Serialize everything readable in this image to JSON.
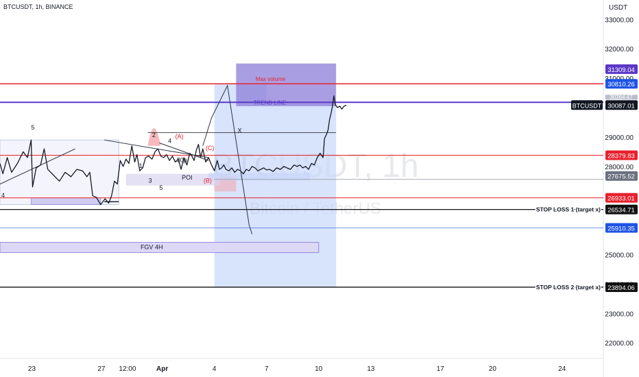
{
  "header": {
    "symbol_line": "BTCUSDT, 1h, BINANCE"
  },
  "watermark": {
    "big": "BTCUSDT, 1h",
    "sub": "Bitcoin / TetherUS"
  },
  "chart_data": {
    "type": "line",
    "title": "BTCUSDT, 1h, BINANCE",
    "ylabel": "USDT",
    "ylim": [
      21400,
      33600
    ],
    "y_ticks": [
      22000,
      23000,
      24000,
      25000,
      26000,
      27000,
      28000,
      29000,
      30000,
      31000,
      32000,
      33000
    ],
    "y_tick_labels": [
      "22000.00",
      "23000.00",
      "24000.00",
      "25000.00",
      "26000.00",
      "27000.00",
      "28000.00",
      "29000.00",
      "30000.00",
      "31000.00",
      "32000.00",
      "33000.00"
    ],
    "x_ticks": [
      {
        "label": "23",
        "x": 0
      },
      {
        "label": "27",
        "x": 96
      },
      {
        "label": "12:00",
        "x": 132
      },
      {
        "label": "Apr",
        "x": 180
      },
      {
        "label": "4",
        "x": 252
      },
      {
        "label": "7",
        "x": 324
      },
      {
        "label": "10",
        "x": 396
      },
      {
        "label": "13",
        "x": 468
      },
      {
        "label": "17",
        "x": 564
      },
      {
        "label": "20",
        "x": 636
      },
      {
        "label": "24",
        "x": 732
      }
    ],
    "x_range": [
      -44,
      789
    ],
    "price_path": [
      [
        -44,
        28100
      ],
      [
        -40,
        27750
      ],
      [
        -34,
        28300
      ],
      [
        -28,
        27800
      ],
      [
        -20,
        28100
      ],
      [
        -12,
        28500
      ],
      [
        -6,
        28300
      ],
      [
        -1,
        28900
      ],
      [
        1,
        27300
      ],
      [
        6,
        27950
      ],
      [
        12,
        28050
      ],
      [
        17,
        28600
      ],
      [
        22,
        27900
      ],
      [
        30,
        27700
      ],
      [
        38,
        27500
      ],
      [
        46,
        27800
      ],
      [
        54,
        27650
      ],
      [
        62,
        27900
      ],
      [
        70,
        27850
      ],
      [
        76,
        27650
      ],
      [
        80,
        27800
      ],
      [
        84,
        27000
      ],
      [
        89,
        26950
      ],
      [
        95,
        26700
      ],
      [
        101,
        26900
      ],
      [
        106,
        26750
      ],
      [
        110,
        27000
      ],
      [
        114,
        27500
      ],
      [
        118,
        27400
      ],
      [
        122,
        28200
      ],
      [
        126,
        28000
      ],
      [
        130,
        28250
      ],
      [
        134,
        28100
      ],
      [
        138,
        28700
      ],
      [
        142,
        28150
      ],
      [
        145,
        28400
      ],
      [
        149,
        27850
      ],
      [
        153,
        27950
      ],
      [
        157,
        28300
      ],
      [
        161,
        28350
      ],
      [
        166,
        28250
      ],
      [
        170,
        28500
      ],
      [
        174,
        28600
      ],
      [
        178,
        28350
      ],
      [
        182,
        28300
      ],
      [
        186,
        28400
      ],
      [
        190,
        28200
      ],
      [
        194,
        28350
      ],
      [
        198,
        28150
      ],
      [
        202,
        28250
      ],
      [
        206,
        27900
      ],
      [
        210,
        28300
      ],
      [
        214,
        28050
      ],
      [
        218,
        28450
      ],
      [
        221,
        28350
      ],
      [
        224,
        28200
      ],
      [
        227,
        28550
      ],
      [
        230,
        28750
      ],
      [
        233,
        28300
      ],
      [
        236,
        28600
      ],
      [
        240,
        28150
      ],
      [
        244,
        28300
      ],
      [
        248,
        28050
      ],
      [
        252,
        27850
      ],
      [
        256,
        28200
      ],
      [
        259,
        27900
      ],
      [
        262,
        27950
      ],
      [
        265,
        28050
      ],
      [
        268,
        27900
      ],
      [
        272,
        27850
      ],
      [
        276,
        27950
      ],
      [
        280,
        27800
      ],
      [
        284,
        27900
      ],
      [
        288,
        27850
      ],
      [
        292,
        27750
      ],
      [
        296,
        27900
      ],
      [
        300,
        27850
      ],
      [
        304,
        28000
      ],
      [
        308,
        27950
      ],
      [
        312,
        27850
      ],
      [
        316,
        27900
      ],
      [
        320,
        27950
      ],
      [
        324,
        27880
      ],
      [
        328,
        27900
      ],
      [
        333,
        27830
      ],
      [
        338,
        27950
      ],
      [
        343,
        27900
      ],
      [
        348,
        28000
      ],
      [
        352,
        27950
      ],
      [
        357,
        27900
      ],
      [
        362,
        28050
      ],
      [
        366,
        28000
      ],
      [
        370,
        28050
      ],
      [
        374,
        27950
      ],
      [
        378,
        28000
      ],
      [
        382,
        27900
      ],
      [
        386,
        28100
      ],
      [
        390,
        28050
      ],
      [
        394,
        28300
      ],
      [
        398,
        28450
      ],
      [
        402,
        28300
      ],
      [
        404,
        28950
      ],
      [
        407,
        29100
      ],
      [
        409,
        29250
      ],
      [
        411,
        29600
      ],
      [
        413,
        29800
      ],
      [
        415,
        30050
      ],
      [
        417,
        30400
      ],
      [
        419,
        30100
      ],
      [
        422,
        30000
      ],
      [
        425,
        30050
      ],
      [
        428,
        29950
      ],
      [
        431,
        30050
      ],
      [
        434,
        30087
      ]
    ],
    "current_price_label": "BTCUSDT",
    "current_price": 30087.01,
    "last_price_clipped": "30264.47",
    "horizontal_levels": [
      {
        "price": 31309.04,
        "label": "31309.04",
        "color": "#5b38c7"
      },
      {
        "price": 30810.26,
        "label": "30810.26",
        "color": "#1e53e5"
      },
      {
        "price": 28379.83,
        "label": "28379.83",
        "color": "#e8212d"
      },
      {
        "price": 27675.52,
        "label": "27675.52",
        "color": "#555d6e"
      },
      {
        "price": 26933.01,
        "label": "26933.01",
        "color": "#e8212d"
      },
      {
        "price": 26534.71,
        "label": "26534.71",
        "color": "#111111",
        "annotation": "STOP LOSS 1 (target x)"
      },
      {
        "price": 25910.35,
        "label": "25910.35",
        "color": "#1e53e5"
      },
      {
        "price": 23894.06,
        "label": "23894.06",
        "color": "#111111",
        "annotation": "STOP LOSS 2 (target x)"
      }
    ],
    "drawings": {
      "max_volume_line": {
        "price": 30810,
        "label": "Max volume",
        "color": "#e8212d"
      },
      "trend_line": {
        "price": 30180,
        "label": "TREND LINE",
        "color": "#5b38c7"
      },
      "fgv_zone": {
        "x1": -44,
        "x2": 396,
        "y_top": 25420,
        "y_bottom": 25070,
        "label": "FGV 4H"
      },
      "poi_label": "POI",
      "wave_labels": [
        "5",
        "4",
        "2",
        "4",
        "1",
        "3",
        "5",
        "30p",
        "(A)",
        "(C)",
        "(B)",
        "X"
      ]
    }
  }
}
